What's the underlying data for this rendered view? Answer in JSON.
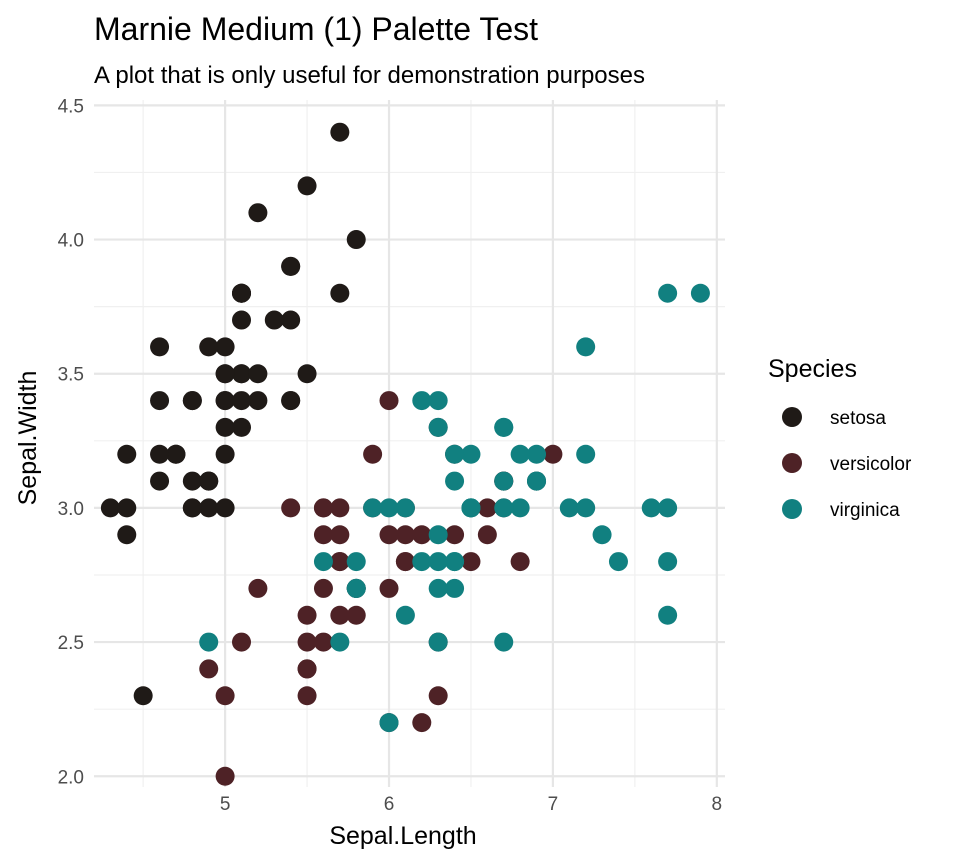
{
  "chart_data": {
    "type": "scatter",
    "title": "Marnie Medium (1) Palette Test",
    "subtitle": "A plot that is only useful for demonstration purposes",
    "xlabel": "Sepal.Length",
    "ylabel": "Sepal.Width",
    "xlim": [
      4.2,
      8.05
    ],
    "ylim": [
      1.96,
      4.52
    ],
    "xticks": [
      "5",
      "6",
      "7",
      "8"
    ],
    "yticks": [
      "2.0",
      "2.5",
      "3.0",
      "3.5",
      "4.0",
      "4.5"
    ],
    "grid": true,
    "legend": {
      "title": "Species",
      "position": "right",
      "entries": [
        "setosa",
        "versicolor",
        "virginica"
      ]
    },
    "series": [
      {
        "name": "setosa",
        "color": "#1f1a17",
        "points": [
          [
            5.1,
            3.5
          ],
          [
            4.9,
            3.0
          ],
          [
            4.7,
            3.2
          ],
          [
            4.6,
            3.1
          ],
          [
            5.0,
            3.6
          ],
          [
            5.4,
            3.9
          ],
          [
            4.6,
            3.4
          ],
          [
            5.0,
            3.4
          ],
          [
            4.4,
            2.9
          ],
          [
            4.9,
            3.1
          ],
          [
            5.4,
            3.7
          ],
          [
            4.8,
            3.4
          ],
          [
            4.8,
            3.0
          ],
          [
            4.3,
            3.0
          ],
          [
            5.8,
            4.0
          ],
          [
            5.7,
            4.4
          ],
          [
            5.4,
            3.9
          ],
          [
            5.1,
            3.5
          ],
          [
            5.7,
            3.8
          ],
          [
            5.1,
            3.8
          ],
          [
            5.4,
            3.4
          ],
          [
            5.1,
            3.7
          ],
          [
            4.6,
            3.6
          ],
          [
            5.1,
            3.3
          ],
          [
            4.8,
            3.4
          ],
          [
            5.0,
            3.0
          ],
          [
            5.0,
            3.4
          ],
          [
            5.2,
            3.5
          ],
          [
            5.2,
            3.4
          ],
          [
            4.7,
            3.2
          ],
          [
            4.8,
            3.1
          ],
          [
            5.4,
            3.4
          ],
          [
            5.2,
            4.1
          ],
          [
            5.5,
            4.2
          ],
          [
            4.9,
            3.1
          ],
          [
            5.0,
            3.2
          ],
          [
            5.5,
            3.5
          ],
          [
            4.9,
            3.6
          ],
          [
            4.4,
            3.0
          ],
          [
            5.1,
            3.4
          ],
          [
            5.0,
            3.5
          ],
          [
            4.5,
            2.3
          ],
          [
            4.4,
            3.2
          ],
          [
            5.0,
            3.5
          ],
          [
            5.1,
            3.8
          ],
          [
            4.8,
            3.0
          ],
          [
            5.1,
            3.8
          ],
          [
            4.6,
            3.2
          ],
          [
            5.3,
            3.7
          ],
          [
            5.0,
            3.3
          ]
        ]
      },
      {
        "name": "versicolor",
        "color": "#4e2226",
        "points": [
          [
            7.0,
            3.2
          ],
          [
            6.4,
            3.2
          ],
          [
            6.9,
            3.1
          ],
          [
            5.5,
            2.3
          ],
          [
            6.5,
            2.8
          ],
          [
            5.7,
            2.8
          ],
          [
            6.3,
            3.3
          ],
          [
            4.9,
            2.4
          ],
          [
            6.6,
            2.9
          ],
          [
            5.2,
            2.7
          ],
          [
            5.0,
            2.0
          ],
          [
            5.9,
            3.0
          ],
          [
            6.0,
            2.2
          ],
          [
            6.1,
            2.9
          ],
          [
            5.6,
            2.9
          ],
          [
            6.7,
            3.1
          ],
          [
            5.6,
            3.0
          ],
          [
            5.8,
            2.7
          ],
          [
            6.2,
            2.2
          ],
          [
            5.6,
            2.5
          ],
          [
            5.9,
            3.2
          ],
          [
            6.1,
            2.8
          ],
          [
            6.3,
            2.5
          ],
          [
            6.1,
            2.8
          ],
          [
            6.4,
            2.9
          ],
          [
            6.6,
            3.0
          ],
          [
            6.8,
            2.8
          ],
          [
            6.7,
            3.0
          ],
          [
            6.0,
            2.9
          ],
          [
            5.7,
            2.6
          ],
          [
            5.5,
            2.4
          ],
          [
            5.5,
            2.4
          ],
          [
            5.8,
            2.7
          ],
          [
            6.0,
            2.7
          ],
          [
            5.4,
            3.0
          ],
          [
            6.0,
            3.4
          ],
          [
            6.7,
            3.1
          ],
          [
            6.3,
            2.3
          ],
          [
            5.6,
            3.0
          ],
          [
            5.5,
            2.5
          ],
          [
            5.5,
            2.6
          ],
          [
            6.1,
            3.0
          ],
          [
            5.8,
            2.6
          ],
          [
            5.0,
            2.3
          ],
          [
            5.6,
            2.7
          ],
          [
            5.7,
            3.0
          ],
          [
            5.7,
            2.9
          ],
          [
            6.2,
            2.9
          ],
          [
            5.1,
            2.5
          ],
          [
            5.7,
            2.8
          ]
        ]
      },
      {
        "name": "virginica",
        "color": "#118080",
        "points": [
          [
            6.3,
            3.3
          ],
          [
            5.8,
            2.7
          ],
          [
            7.1,
            3.0
          ],
          [
            6.3,
            2.9
          ],
          [
            6.5,
            3.0
          ],
          [
            7.6,
            3.0
          ],
          [
            4.9,
            2.5
          ],
          [
            7.3,
            2.9
          ],
          [
            6.7,
            2.5
          ],
          [
            7.2,
            3.6
          ],
          [
            6.5,
            3.2
          ],
          [
            6.4,
            2.7
          ],
          [
            6.8,
            3.0
          ],
          [
            5.7,
            2.5
          ],
          [
            5.8,
            2.8
          ],
          [
            6.4,
            3.2
          ],
          [
            6.5,
            3.0
          ],
          [
            7.7,
            3.8
          ],
          [
            7.7,
            2.6
          ],
          [
            6.0,
            2.2
          ],
          [
            6.9,
            3.2
          ],
          [
            5.6,
            2.8
          ],
          [
            7.7,
            2.8
          ],
          [
            6.3,
            2.7
          ],
          [
            6.7,
            3.3
          ],
          [
            7.2,
            3.2
          ],
          [
            6.2,
            2.8
          ],
          [
            6.1,
            3.0
          ],
          [
            6.4,
            2.8
          ],
          [
            7.2,
            3.0
          ],
          [
            7.4,
            2.8
          ],
          [
            7.9,
            3.8
          ],
          [
            6.4,
            2.8
          ],
          [
            6.3,
            2.8
          ],
          [
            6.1,
            2.6
          ],
          [
            7.7,
            3.0
          ],
          [
            6.3,
            3.4
          ],
          [
            6.4,
            3.1
          ],
          [
            6.0,
            3.0
          ],
          [
            6.9,
            3.1
          ],
          [
            6.7,
            3.1
          ],
          [
            6.9,
            3.1
          ],
          [
            5.8,
            2.7
          ],
          [
            6.8,
            3.2
          ],
          [
            6.7,
            3.3
          ],
          [
            6.7,
            3.0
          ],
          [
            6.3,
            2.5
          ],
          [
            6.5,
            3.0
          ],
          [
            6.2,
            3.4
          ],
          [
            5.9,
            3.0
          ]
        ]
      }
    ]
  }
}
